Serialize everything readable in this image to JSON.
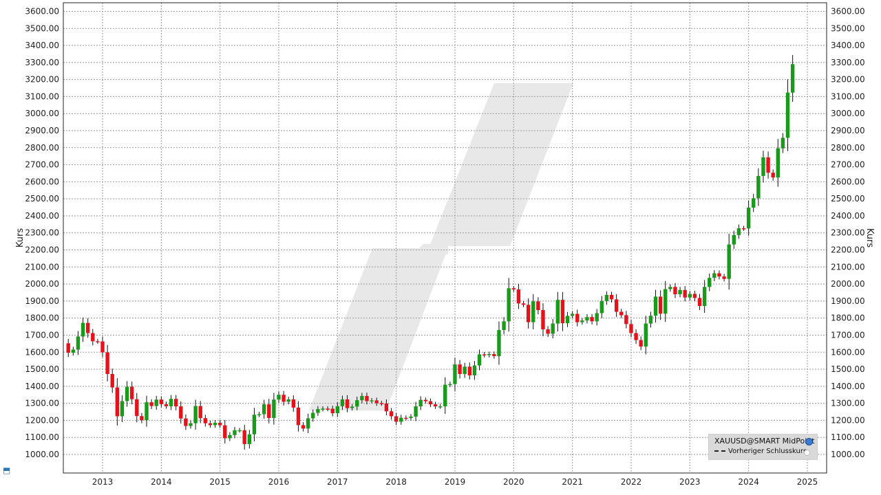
{
  "chart_data": {
    "type": "candlestick",
    "ylabel_left": "Kurs",
    "ylabel_right": "Kurs",
    "ylim": [
      900,
      3650
    ],
    "y_ticks": [
      "1000.00",
      "1100.00",
      "1200.00",
      "1300.00",
      "1400.00",
      "1500.00",
      "1600.00",
      "1700.00",
      "1800.00",
      "1900.00",
      "2000.00",
      "2100.00",
      "2200.00",
      "2300.00",
      "2400.00",
      "2500.00",
      "2600.00",
      "2700.00",
      "2800.00",
      "2900.00",
      "3000.00",
      "3100.00",
      "3200.00",
      "3300.00",
      "3400.00",
      "3500.00",
      "3600.00"
    ],
    "x_ticks": [
      "2013",
      "2014",
      "2015",
      "2016",
      "2017",
      "2018",
      "2019",
      "2020",
      "2021",
      "2022",
      "2023",
      "2024",
      "2025"
    ],
    "up_color": "#1a9a1a",
    "down_color": "#e8101a",
    "grid": true,
    "legend_position": "bottom-right",
    "period": "monthly",
    "start": "2012-06",
    "closes": [
      1597,
      1615,
      1692,
      1772,
      1712,
      1664,
      1663,
      1599,
      1472,
      1393,
      1224,
      1313,
      1397,
      1324,
      1225,
      1201,
      1306,
      1284,
      1322,
      1295,
      1283,
      1326,
      1282,
      1211,
      1167,
      1183,
      1284,
      1213,
      1183,
      1172,
      1186,
      1171,
      1095,
      1114,
      1142,
      1142,
      1061,
      1118,
      1233,
      1236,
      1294,
      1214,
      1322,
      1350,
      1309,
      1323,
      1275,
      1172,
      1152,
      1212,
      1244,
      1266,
      1269,
      1268,
      1242,
      1283,
      1323,
      1272,
      1281,
      1318,
      1343,
      1313,
      1317,
      1301,
      1299,
      1253,
      1224,
      1192,
      1215,
      1214,
      1222,
      1282,
      1320,
      1312,
      1294,
      1282,
      1282,
      1409,
      1413,
      1528,
      1472,
      1515,
      1464,
      1522,
      1587,
      1583,
      1589,
      1577,
      1730,
      1781,
      1975,
      1968,
      1886,
      1878,
      1776,
      1898,
      1847,
      1734,
      1708,
      1768,
      1907,
      1770,
      1813,
      1825,
      1776,
      1786,
      1806,
      1781,
      1829,
      1900,
      1936,
      1910,
      1837,
      1817,
      1765,
      1712,
      1671,
      1633,
      1768,
      1814,
      1926,
      1826,
      1970,
      1983,
      1940,
      1965,
      1921,
      1942,
      1918,
      1871,
      1983,
      2036,
      2063,
      2044,
      2030,
      2232,
      2287,
      2327,
      2326,
      2448,
      2503,
      2634,
      2743,
      2653,
      2625,
      2796,
      2858,
      3123,
      3290
    ],
    "series_name": "XAUUSD@SMART MidPoint"
  },
  "legend": {
    "series_label": "XAUUSD@SMART MidPoint",
    "prev_close_label": "Vorheriger Schlusskurs"
  }
}
